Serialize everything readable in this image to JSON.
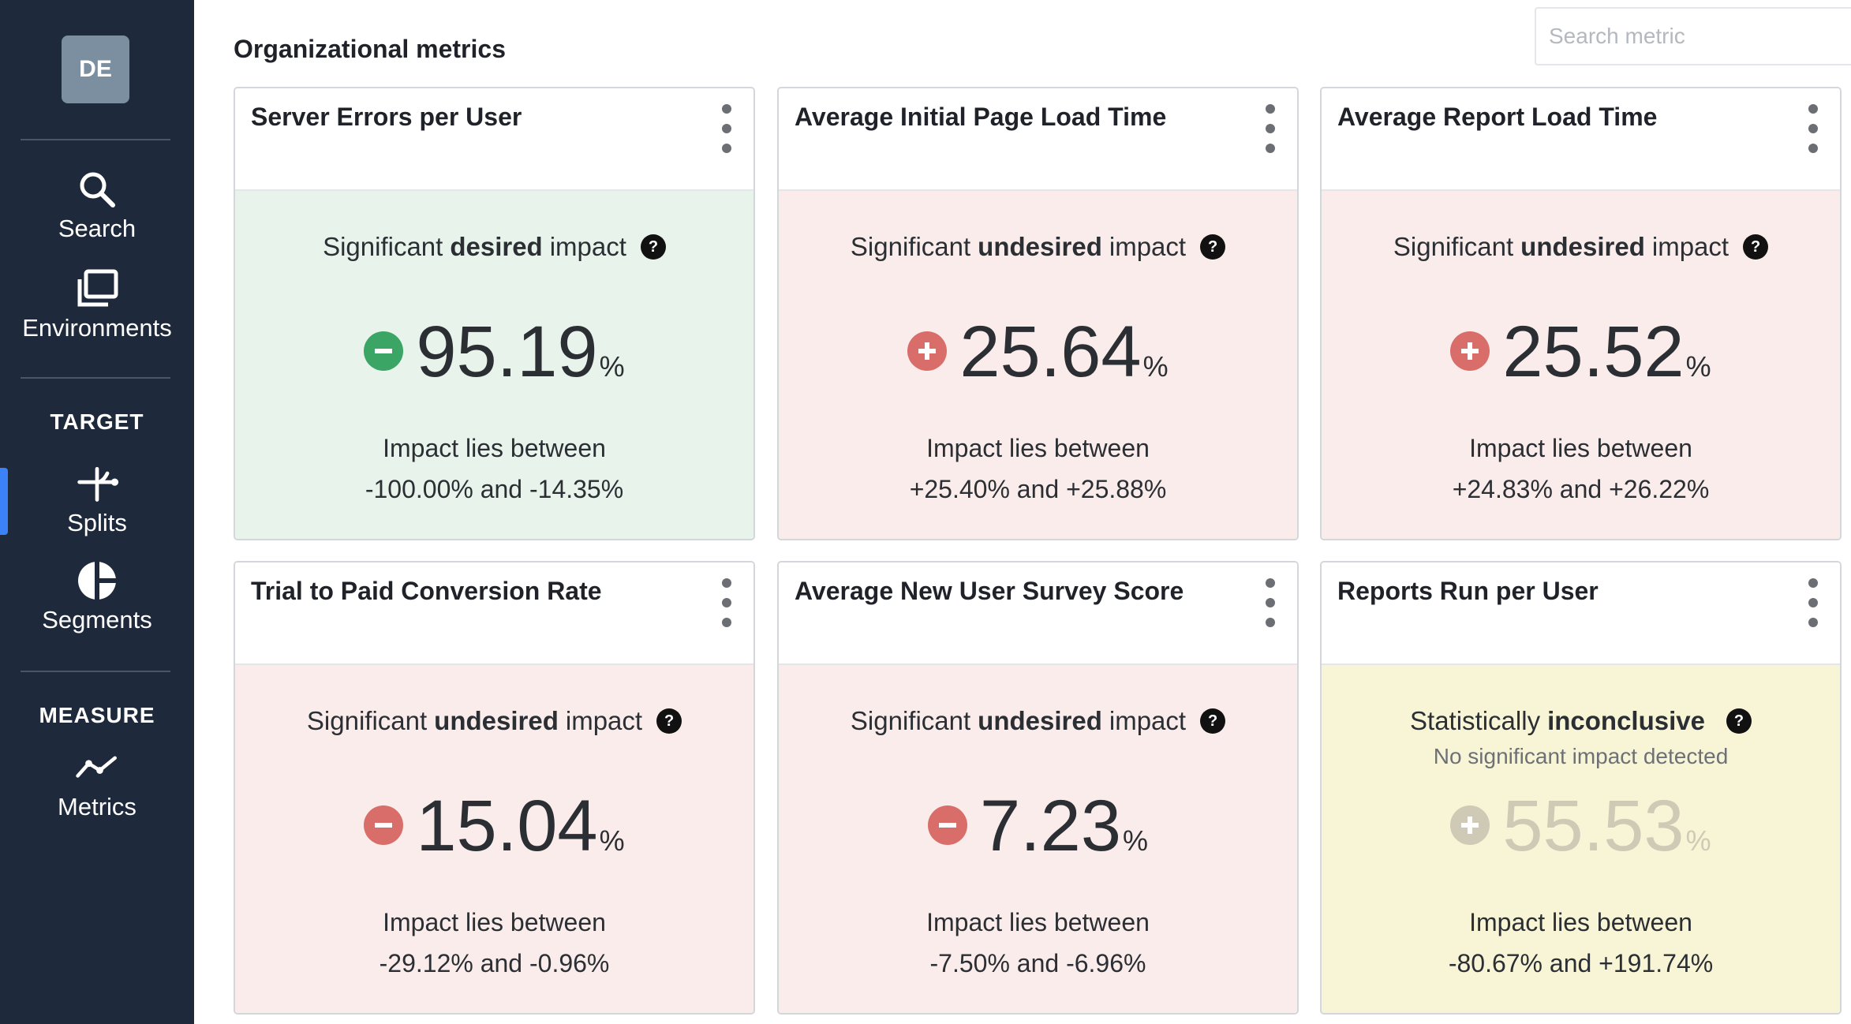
{
  "sidebar": {
    "avatar": "DE",
    "items": [
      {
        "label": "Search"
      },
      {
        "label": "Environments"
      }
    ],
    "target_label": "TARGET",
    "target_items": [
      {
        "label": "Splits"
      },
      {
        "label": "Segments"
      }
    ],
    "measure_label": "MEASURE",
    "measure_items": [
      {
        "label": "Metrics"
      }
    ]
  },
  "header": {
    "title": "Organizational metrics",
    "search_placeholder": "Search metric"
  },
  "help_glyph": "?",
  "colors": {
    "sidebar": "#1e2a3b",
    "desired_bg": "#e8f3ec",
    "undesired_bg": "#f9eceb",
    "inconclusive_bg": "#f8f4d6",
    "green": "#3aa564",
    "red": "#d96d69"
  },
  "cards": [
    {
      "title": "Server Errors per User",
      "status_pre": "Significant",
      "status_emph": "desired",
      "status_post": "impact",
      "substatus": "",
      "sign": "minus",
      "sign_color": "green",
      "value": "95.19",
      "unit": "%",
      "range_label": "Impact lies between",
      "range": "-100.00% and -14.35%"
    },
    {
      "title": "Average Initial Page Load Time",
      "status_pre": "Significant",
      "status_emph": "undesired",
      "status_post": "impact",
      "substatus": "",
      "sign": "plus",
      "sign_color": "red",
      "value": "25.64",
      "unit": "%",
      "range_label": "Impact lies between",
      "range": "+25.40% and +25.88%"
    },
    {
      "title": "Average Report Load Time",
      "status_pre": "Significant",
      "status_emph": "undesired",
      "status_post": "impact",
      "substatus": "",
      "sign": "plus",
      "sign_color": "red",
      "value": "25.52",
      "unit": "%",
      "range_label": "Impact lies between",
      "range": "+24.83% and +26.22%"
    },
    {
      "title": "Trial to Paid Conversion Rate",
      "status_pre": "Significant",
      "status_emph": "undesired",
      "status_post": "impact",
      "substatus": "",
      "sign": "minus",
      "sign_color": "red",
      "value": "15.04",
      "unit": "%",
      "range_label": "Impact lies between",
      "range": "-29.12% and -0.96%"
    },
    {
      "title": "Average New User Survey Score",
      "status_pre": "Significant",
      "status_emph": "undesired",
      "status_post": "impact",
      "substatus": "",
      "sign": "minus",
      "sign_color": "red",
      "value": "7.23",
      "unit": "%",
      "range_label": "Impact lies between",
      "range": "-7.50% and -6.96%"
    },
    {
      "title": "Reports Run per User",
      "status_pre": "Statistically",
      "status_emph": "inconclusive",
      "status_post": "",
      "substatus": "No significant impact detected",
      "sign": "plus",
      "sign_color": "grey",
      "value": "55.53",
      "unit": "%",
      "range_label": "Impact lies between",
      "range": "-80.67% and +191.74%"
    }
  ]
}
